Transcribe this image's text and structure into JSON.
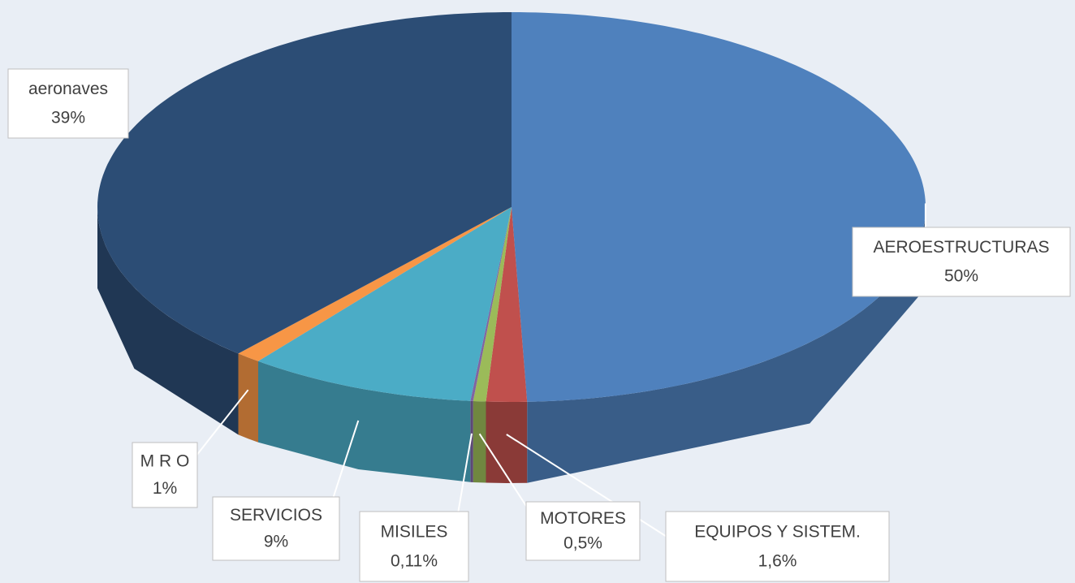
{
  "chart_data": {
    "type": "pie3d",
    "categories": [
      "AEROESTRUCTURAS",
      "EQUIPOS Y SISTEM.",
      "MOTORES",
      "MISILES",
      "SERVICIOS",
      "M R O",
      "aeronaves"
    ],
    "values": [
      50,
      1.6,
      0.5,
      0.11,
      9,
      1,
      39
    ],
    "value_labels": [
      "50%",
      "1,6%",
      "0,5%",
      "0,11%",
      "9%",
      "1%",
      "39%"
    ],
    "colors": [
      "#4f81bd",
      "#c0504d",
      "#9bbb59",
      "#8064a2",
      "#4bacc6",
      "#f79646",
      "#2c4d75"
    ]
  }
}
